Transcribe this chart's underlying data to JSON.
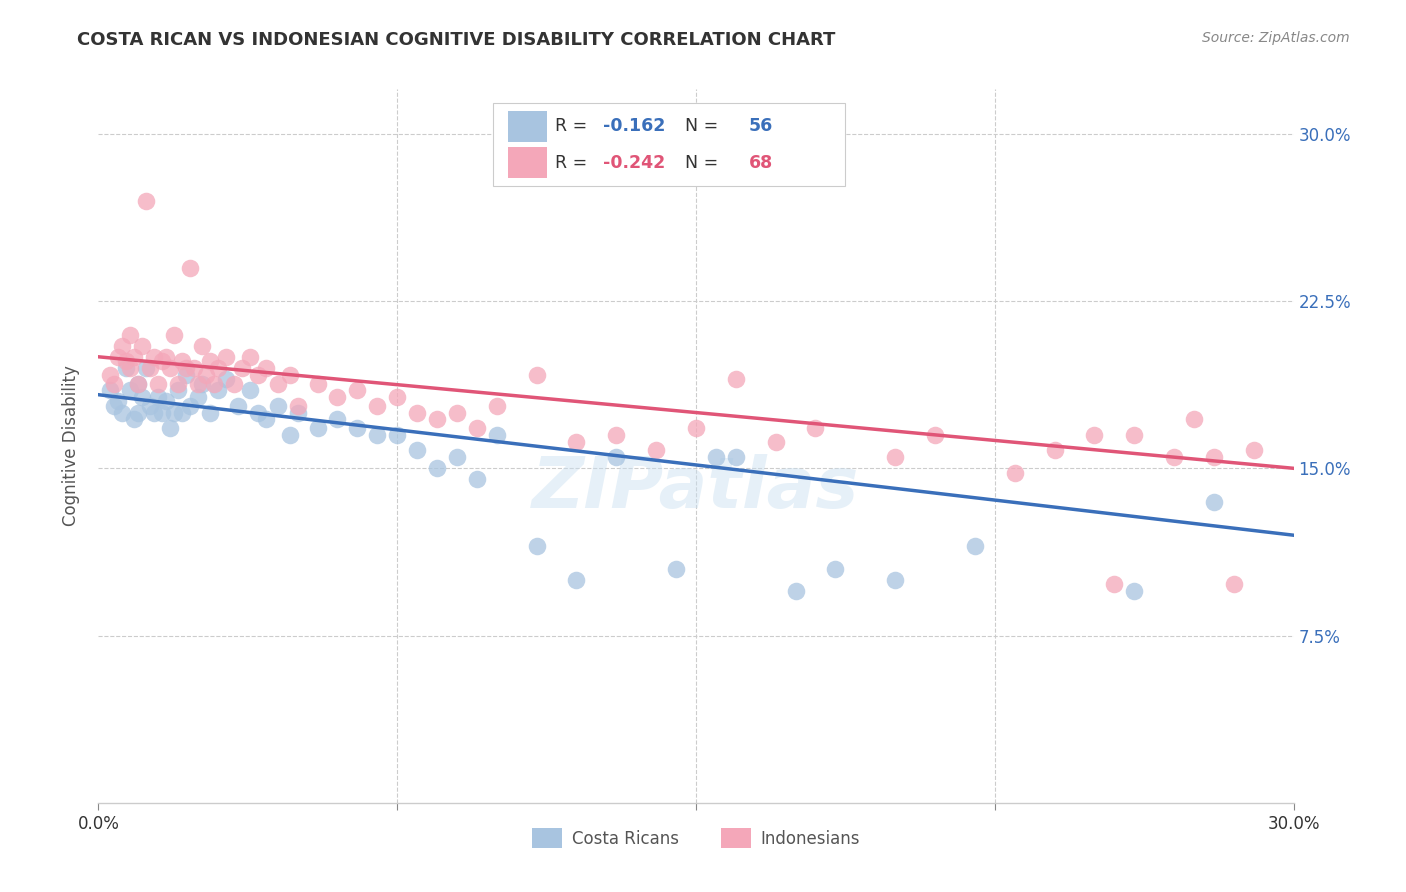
{
  "title": "COSTA RICAN VS INDONESIAN COGNITIVE DISABILITY CORRELATION CHART",
  "source": "Source: ZipAtlas.com",
  "ylabel": "Cognitive Disability",
  "xlim": [
    0.0,
    0.3
  ],
  "ylim": [
    0.0,
    0.32
  ],
  "blue_R": "-0.162",
  "blue_N": "56",
  "pink_R": "-0.242",
  "pink_N": "68",
  "blue_color": "#a8c4e0",
  "pink_color": "#f4a7b9",
  "blue_line_color": "#3a6fba",
  "pink_line_color": "#e05577",
  "watermark": "ZIPatlas",
  "legend_label_blue": "Costa Ricans",
  "legend_label_pink": "Indonesians",
  "blue_line_start_y": 0.183,
  "blue_line_end_y": 0.12,
  "pink_line_start_y": 0.2,
  "pink_line_end_y": 0.15,
  "blue_points_x": [
    0.003,
    0.004,
    0.005,
    0.006,
    0.007,
    0.008,
    0.009,
    0.01,
    0.01,
    0.011,
    0.012,
    0.013,
    0.014,
    0.015,
    0.016,
    0.017,
    0.018,
    0.019,
    0.02,
    0.021,
    0.022,
    0.023,
    0.025,
    0.026,
    0.028,
    0.03,
    0.032,
    0.035,
    0.038,
    0.04,
    0.042,
    0.045,
    0.048,
    0.05,
    0.055,
    0.06,
    0.065,
    0.07,
    0.075,
    0.08,
    0.085,
    0.09,
    0.095,
    0.1,
    0.11,
    0.12,
    0.13,
    0.145,
    0.155,
    0.16,
    0.175,
    0.185,
    0.2,
    0.22,
    0.26,
    0.28
  ],
  "blue_points_y": [
    0.185,
    0.178,
    0.18,
    0.175,
    0.195,
    0.185,
    0.172,
    0.188,
    0.175,
    0.182,
    0.195,
    0.178,
    0.175,
    0.182,
    0.175,
    0.18,
    0.168,
    0.175,
    0.185,
    0.175,
    0.192,
    0.178,
    0.182,
    0.188,
    0.175,
    0.185,
    0.19,
    0.178,
    0.185,
    0.175,
    0.172,
    0.178,
    0.165,
    0.175,
    0.168,
    0.172,
    0.168,
    0.165,
    0.165,
    0.158,
    0.15,
    0.155,
    0.145,
    0.165,
    0.115,
    0.1,
    0.155,
    0.105,
    0.155,
    0.155,
    0.095,
    0.105,
    0.1,
    0.115,
    0.095,
    0.135
  ],
  "pink_points_x": [
    0.003,
    0.004,
    0.005,
    0.006,
    0.007,
    0.008,
    0.008,
    0.009,
    0.01,
    0.011,
    0.012,
    0.013,
    0.014,
    0.015,
    0.016,
    0.017,
    0.018,
    0.019,
    0.02,
    0.021,
    0.022,
    0.023,
    0.024,
    0.025,
    0.026,
    0.027,
    0.028,
    0.029,
    0.03,
    0.032,
    0.034,
    0.036,
    0.038,
    0.04,
    0.042,
    0.045,
    0.048,
    0.05,
    0.055,
    0.06,
    0.065,
    0.07,
    0.075,
    0.08,
    0.085,
    0.09,
    0.095,
    0.1,
    0.11,
    0.12,
    0.13,
    0.14,
    0.15,
    0.16,
    0.17,
    0.18,
    0.2,
    0.21,
    0.23,
    0.24,
    0.25,
    0.255,
    0.26,
    0.27,
    0.275,
    0.28,
    0.285,
    0.29
  ],
  "pink_points_y": [
    0.192,
    0.188,
    0.2,
    0.205,
    0.198,
    0.21,
    0.195,
    0.2,
    0.188,
    0.205,
    0.27,
    0.195,
    0.2,
    0.188,
    0.198,
    0.2,
    0.195,
    0.21,
    0.188,
    0.198,
    0.195,
    0.24,
    0.195,
    0.188,
    0.205,
    0.192,
    0.198,
    0.188,
    0.195,
    0.2,
    0.188,
    0.195,
    0.2,
    0.192,
    0.195,
    0.188,
    0.192,
    0.178,
    0.188,
    0.182,
    0.185,
    0.178,
    0.182,
    0.175,
    0.172,
    0.175,
    0.168,
    0.178,
    0.192,
    0.162,
    0.165,
    0.158,
    0.168,
    0.19,
    0.162,
    0.168,
    0.155,
    0.165,
    0.148,
    0.158,
    0.165,
    0.098,
    0.165,
    0.155,
    0.172,
    0.155,
    0.098,
    0.158
  ]
}
